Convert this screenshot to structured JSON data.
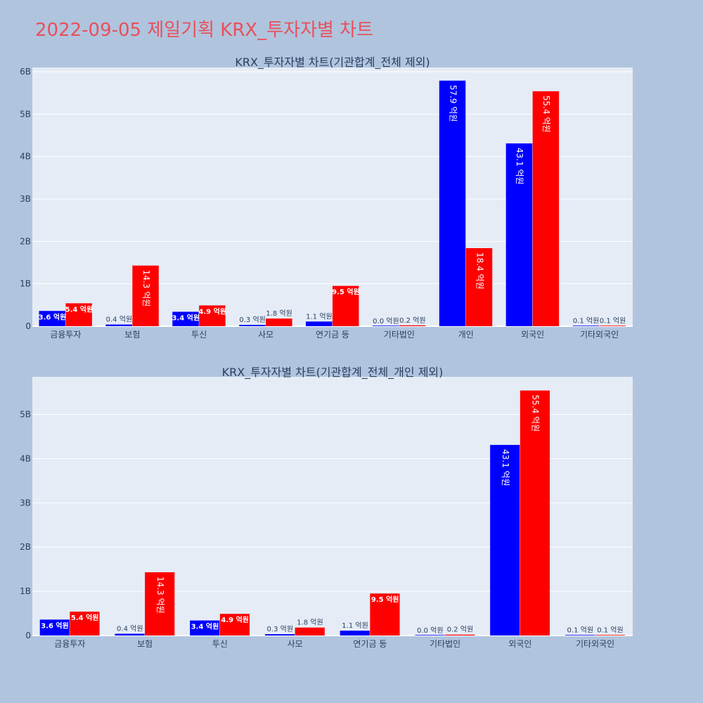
{
  "title": "2022-09-05 제일기획 KRX_투자자별 차트",
  "colors": {
    "buy": "#0000ff",
    "sell": "#ff0000",
    "plot_bg": "#e5ecf6",
    "paper_bg": "#b0c4de",
    "title": "#e8505b"
  },
  "chart_data": [
    {
      "type": "bar",
      "title": "KRX_투자자별 차트(기관합계_전체 제외)",
      "categories": [
        "금융투자",
        "보험",
        "투신",
        "사모",
        "연기금 등",
        "기타법인",
        "개인",
        "외국인",
        "기타외국인"
      ],
      "series": [
        {
          "values": [
            0.36,
            0.04,
            0.34,
            0.03,
            0.11,
            0.0,
            5.79,
            4.31,
            0.01
          ],
          "labels": [
            "3.6 억원",
            "0.4 억원",
            "3.4 억원",
            "0.3 억원",
            "1.1 억원",
            "0.0 억원",
            "57.9 억원",
            "43.1 억원",
            "0.1 억원"
          ]
        },
        {
          "values": [
            0.54,
            1.43,
            0.49,
            0.18,
            0.95,
            0.02,
            1.84,
            5.54,
            0.01
          ],
          "labels": [
            "5.4 억원",
            "14.3 억원",
            "4.9 억원",
            "1.8 억원",
            "9.5 억원",
            "0.2 억원",
            "18.4 억원",
            "55.4 억원",
            "0.1 억원"
          ]
        }
      ],
      "yticks": [
        "0",
        "1B",
        "2B",
        "3B",
        "4B",
        "5B",
        "6B"
      ],
      "ytick_values": [
        0,
        1,
        2,
        3,
        4,
        5,
        6
      ],
      "ylim": [
        0,
        6.1
      ],
      "grid": true
    },
    {
      "type": "bar",
      "title": "KRX_투자자별 차트(기관합계_전체_개인 제외)",
      "categories": [
        "금융투자",
        "보험",
        "투신",
        "사모",
        "연기금 등",
        "기타법인",
        "외국인",
        "기타외국인"
      ],
      "series": [
        {
          "values": [
            0.36,
            0.04,
            0.34,
            0.03,
            0.11,
            0.0,
            4.31,
            0.01
          ],
          "labels": [
            "3.6 억원",
            "0.4 억원",
            "3.4 억원",
            "0.3 억원",
            "1.1 억원",
            "0.0 억원",
            "43.1 억원",
            "0.1 억원"
          ]
        },
        {
          "values": [
            0.54,
            1.43,
            0.49,
            0.18,
            0.95,
            0.02,
            5.54,
            0.01
          ],
          "labels": [
            "5.4 억원",
            "14.3 억원",
            "4.9 억원",
            "1.8 억원",
            "9.5 억원",
            "0.2 억원",
            "55.4 억원",
            "0.1 억원"
          ]
        }
      ],
      "yticks": [
        "0",
        "1B",
        "2B",
        "3B",
        "4B",
        "5B"
      ],
      "ytick_values": [
        0,
        1,
        2,
        3,
        4,
        5
      ],
      "ylim": [
        0,
        5.85
      ],
      "grid": true
    }
  ]
}
